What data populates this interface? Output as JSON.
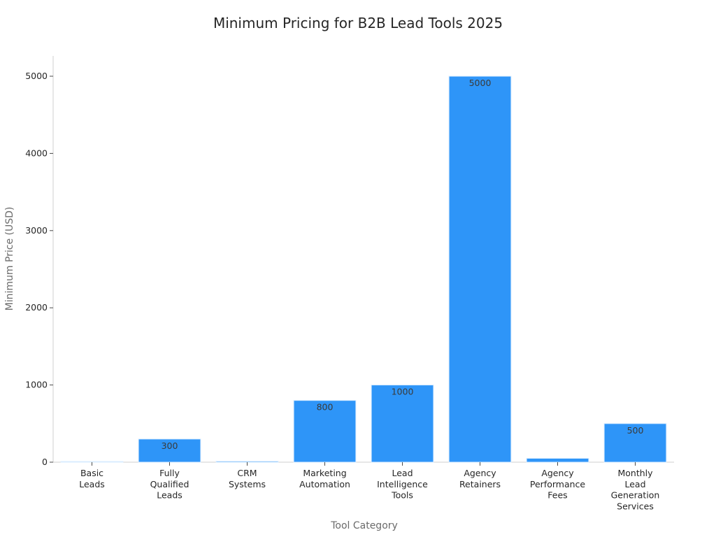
{
  "chart_data": {
    "type": "bar",
    "title": "Minimum Pricing for B2B Lead Tools 2025",
    "xlabel": "Tool Category",
    "ylabel": "Minimum Price (USD)",
    "categories": [
      [
        "Basic",
        "Leads"
      ],
      [
        "Fully",
        "Qualified",
        "Leads"
      ],
      [
        "CRM",
        "Systems"
      ],
      [
        "Marketing",
        "Automation"
      ],
      [
        "Lead",
        "Intelligence",
        "Tools"
      ],
      [
        "Agency",
        "Retainers"
      ],
      [
        "Agency",
        "Performance",
        "Fees"
      ],
      [
        "Monthly",
        "Lead",
        "Generation",
        "Services"
      ]
    ],
    "values": [
      0.1,
      300,
      12,
      800,
      1000,
      5000,
      50,
      500
    ],
    "data_labels": [
      "",
      "300",
      "",
      "800",
      "1000",
      "5000",
      "",
      "500"
    ],
    "ylim": [
      0,
      5250
    ],
    "yticks": [
      0,
      1000,
      2000,
      3000,
      4000,
      5000
    ],
    "grid": false,
    "legend": "none",
    "bar_color": "#2e95f8",
    "bar_edge_color": "#d9ecff"
  }
}
